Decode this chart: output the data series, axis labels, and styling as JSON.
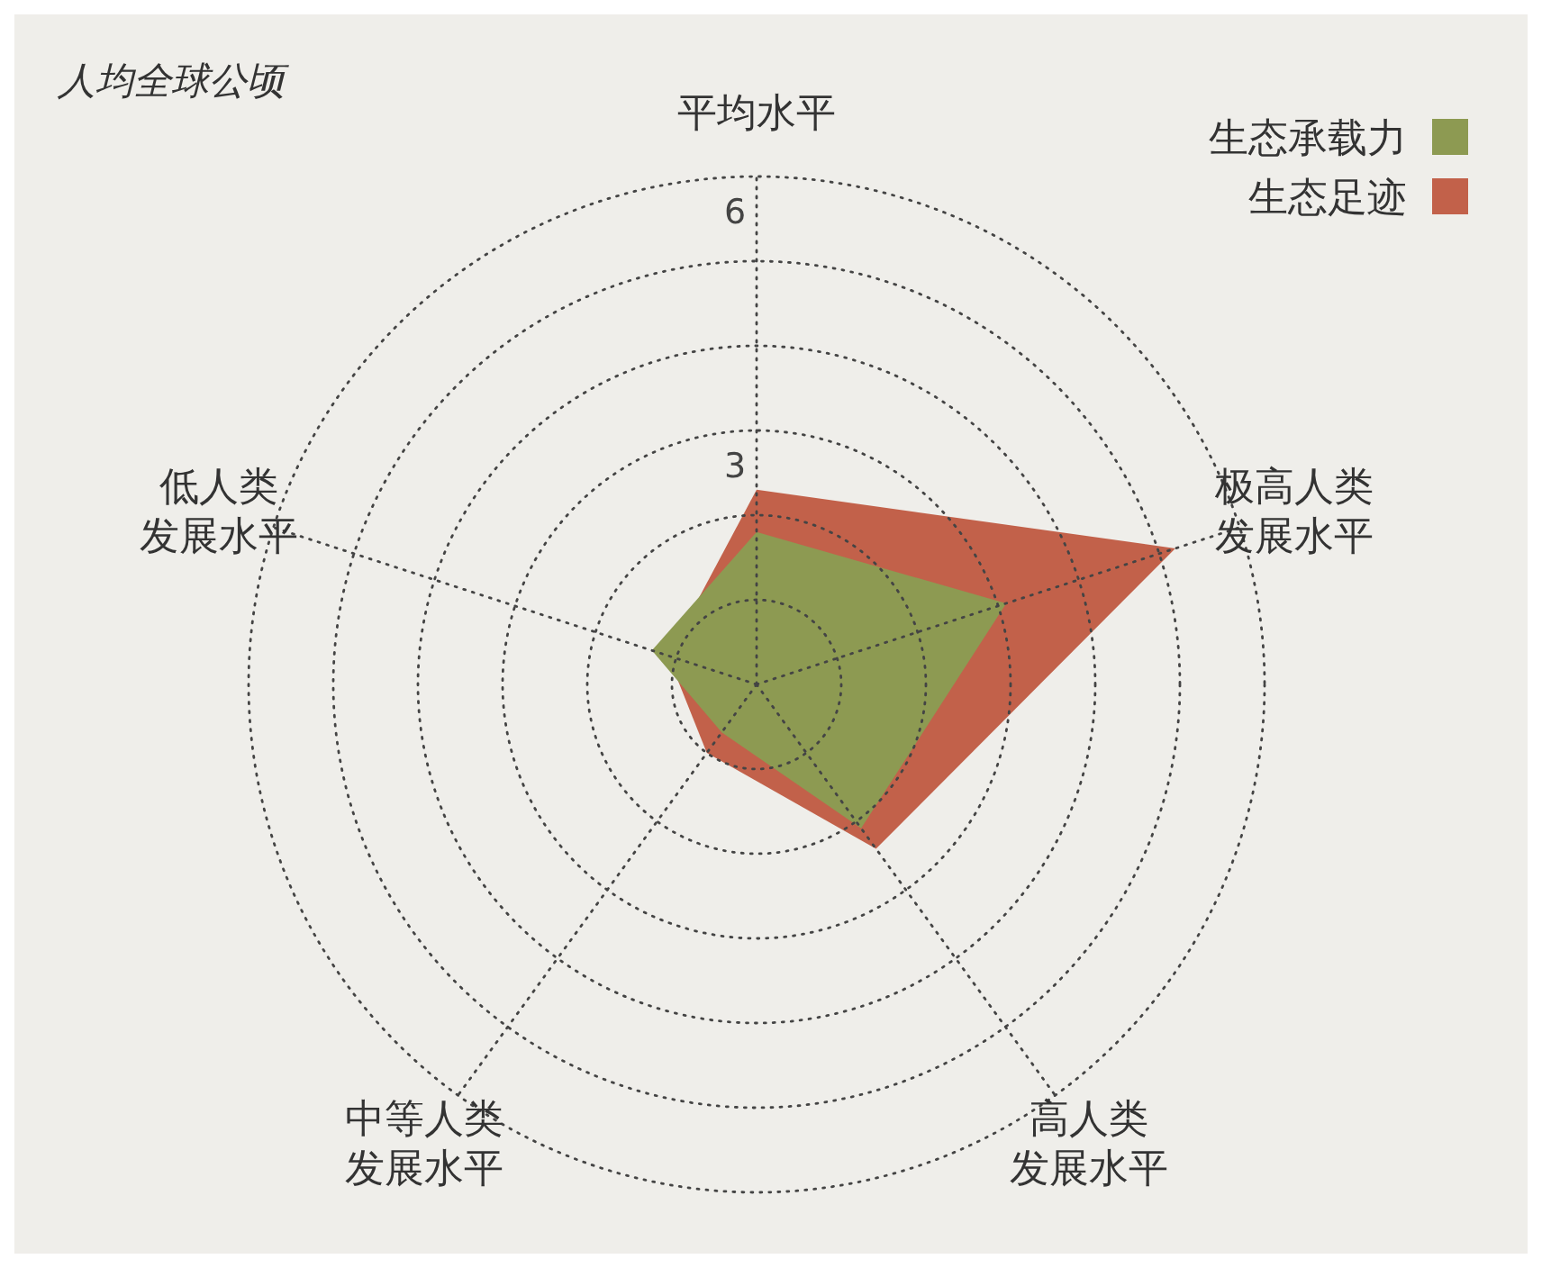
{
  "chart_data": {
    "type": "radar",
    "ylabel": "人均全球公顷",
    "categories": [
      "平均水平",
      "极高人类发展水平",
      "高人类发展水平",
      "中等人类发展水平",
      "低人类发展水平"
    ],
    "series": [
      {
        "name": "生态足迹",
        "color": "#c2614a",
        "values": [
          2.3,
          5.2,
          2.4,
          1.0,
          1.1
        ]
      },
      {
        "name": "生态承载力",
        "color": "#8d9a52",
        "values": [
          1.8,
          3.1,
          2.1,
          0.7,
          1.3
        ]
      }
    ],
    "ylim": [
      0,
      6
    ],
    "yticks": [
      3,
      6
    ],
    "grid": true,
    "legend": "top right"
  }
}
